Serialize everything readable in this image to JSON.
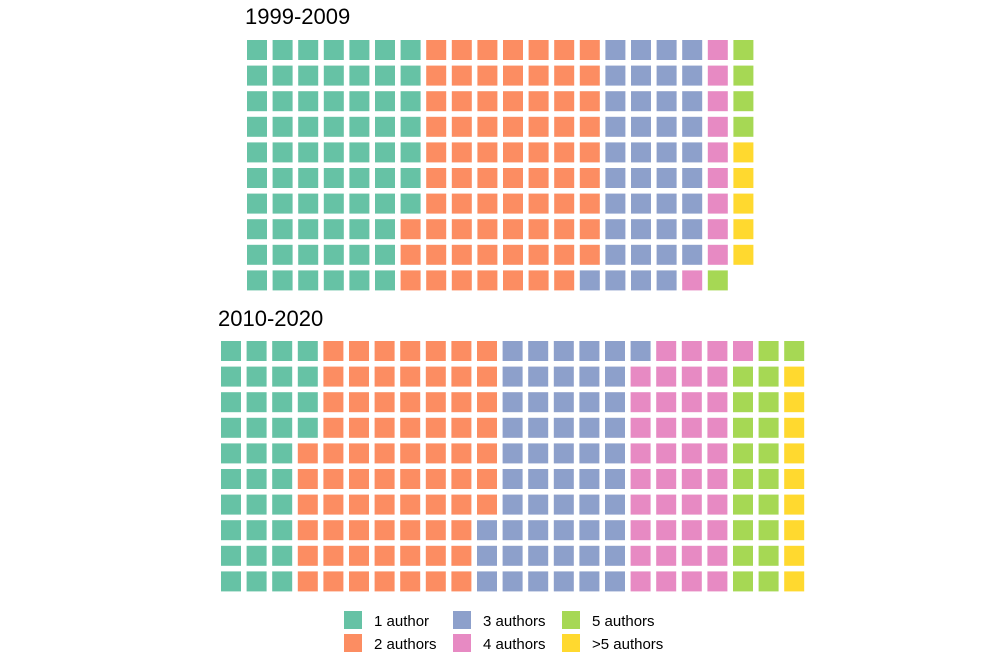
{
  "chart_data": [
    {
      "type": "waffle",
      "title": "1999-2009",
      "rows": 10,
      "fill_order": "column-wise, top to bottom",
      "categories": [
        "1 author",
        "2 authors",
        "3 authors",
        "4 authors",
        "5 authors",
        ">5 authors"
      ],
      "values": [
        67,
        72,
        40,
        10,
        5,
        5
      ],
      "total": 199
    },
    {
      "type": "waffle",
      "title": "2010-2020",
      "rows": 10,
      "fill_order": "column-wise, top to bottom",
      "categories": [
        "1 author",
        "2 authors",
        "3 authors",
        "4 authors",
        "5 authors",
        ">5 authors"
      ],
      "values": [
        34,
        73,
        54,
        40,
        20,
        9
      ],
      "total": 230
    }
  ],
  "legend": {
    "placement": "bottom",
    "items": [
      {
        "label": "1 author",
        "color": "#66c2a5"
      },
      {
        "label": "2 authors",
        "color": "#fc8d62"
      },
      {
        "label": "3 authors",
        "color": "#8da0cb"
      },
      {
        "label": "4 authors",
        "color": "#e78ac3"
      },
      {
        "label": "5 authors",
        "color": "#a6d854"
      },
      {
        "label": ">5 authors",
        "color": "#ffd92f"
      }
    ]
  }
}
